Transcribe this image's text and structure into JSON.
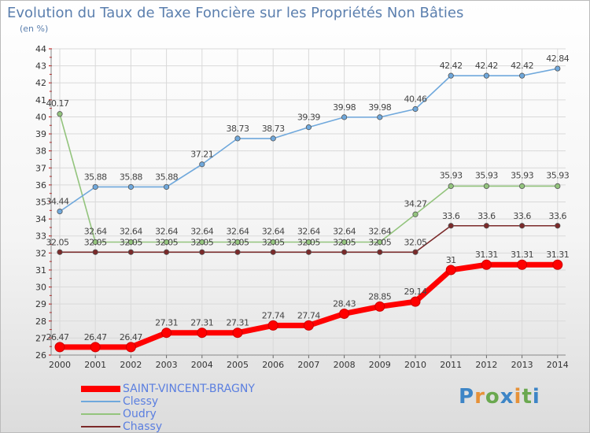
{
  "chart_data": {
    "type": "line",
    "title": "Evolution du Taux de Taxe Foncière sur les Propriétés Non Bâties",
    "subtitle": "(en %)",
    "xlabel": "",
    "ylabel": "",
    "ylim": [
      26,
      44
    ],
    "yticks": [
      "26",
      "27",
      "28",
      "29",
      "30",
      "31",
      "32",
      "33",
      "34",
      "35",
      "36",
      "37",
      "38",
      "39",
      "40",
      "41",
      "42",
      "43",
      "44"
    ],
    "categories": [
      "2000",
      "2001",
      "2002",
      "2003",
      "2004",
      "2005",
      "2006",
      "2007",
      "2008",
      "2009",
      "2010",
      "2011",
      "2012",
      "2013",
      "2014"
    ],
    "grid": true,
    "legend_position": "bottom-left",
    "series": [
      {
        "name": "SAINT-VINCENT-BRAGNY",
        "color": "#ff0000",
        "values": [
          26.47,
          26.47,
          26.47,
          27.31,
          27.31,
          27.31,
          27.74,
          27.74,
          28.43,
          28.85,
          29.14,
          31,
          31.31,
          31.31,
          31.31
        ],
        "labels": [
          "26.47",
          "26.47",
          "26.47",
          "27.31",
          "27.31",
          "27.31",
          "27.74",
          "27.74",
          "28.43",
          "28.85",
          "29.14",
          "31",
          "31.31",
          "31.31",
          "31.31"
        ]
      },
      {
        "name": "Clessy",
        "color": "#6fa8dc",
        "values": [
          34.44,
          35.88,
          35.88,
          35.88,
          37.21,
          38.73,
          38.73,
          39.39,
          39.98,
          39.98,
          40.46,
          42.42,
          42.42,
          42.42,
          42.84
        ],
        "labels": [
          "34.44",
          "35.88",
          "35.88",
          "35.88",
          "37.21",
          "38.73",
          "38.73",
          "39.39",
          "39.98",
          "39.98",
          "40.46",
          "42.42",
          "42.42",
          "42.42",
          "42.84"
        ]
      },
      {
        "name": "Oudry",
        "color": "#93c47d",
        "values": [
          40.17,
          32.64,
          32.64,
          32.64,
          32.64,
          32.64,
          32.64,
          32.64,
          32.64,
          32.64,
          34.27,
          35.93,
          35.93,
          35.93,
          35.93
        ],
        "labels": [
          "40.17",
          "32.64",
          "32.64",
          "32.64",
          "32.64",
          "32.64",
          "32.64",
          "32.64",
          "32.64",
          "32.64",
          "34.27",
          "35.93",
          "35.93",
          "35.93",
          "35.93"
        ]
      },
      {
        "name": "Chassy",
        "color": "#7b2a2a",
        "values": [
          32.05,
          32.05,
          32.05,
          32.05,
          32.05,
          32.05,
          32.05,
          32.05,
          32.05,
          32.05,
          32.05,
          33.6,
          33.6,
          33.6,
          33.6
        ],
        "labels": [
          "32.05",
          "32.05",
          "32.05",
          "32.05",
          "32.05",
          "32.05",
          "32.05",
          "32.05",
          "32.05",
          "32.05",
          "32.05",
          "33.6",
          "33.6",
          "33.6",
          "33.6"
        ]
      }
    ]
  },
  "brand": {
    "letters": [
      "P",
      "r",
      "o",
      "x",
      "i",
      "t",
      "i"
    ],
    "colors": [
      "#3d85c6",
      "#e69138",
      "#6aa84f",
      "#3d85c6",
      "#e69138",
      "#6aa84f",
      "#3d85c6"
    ]
  }
}
